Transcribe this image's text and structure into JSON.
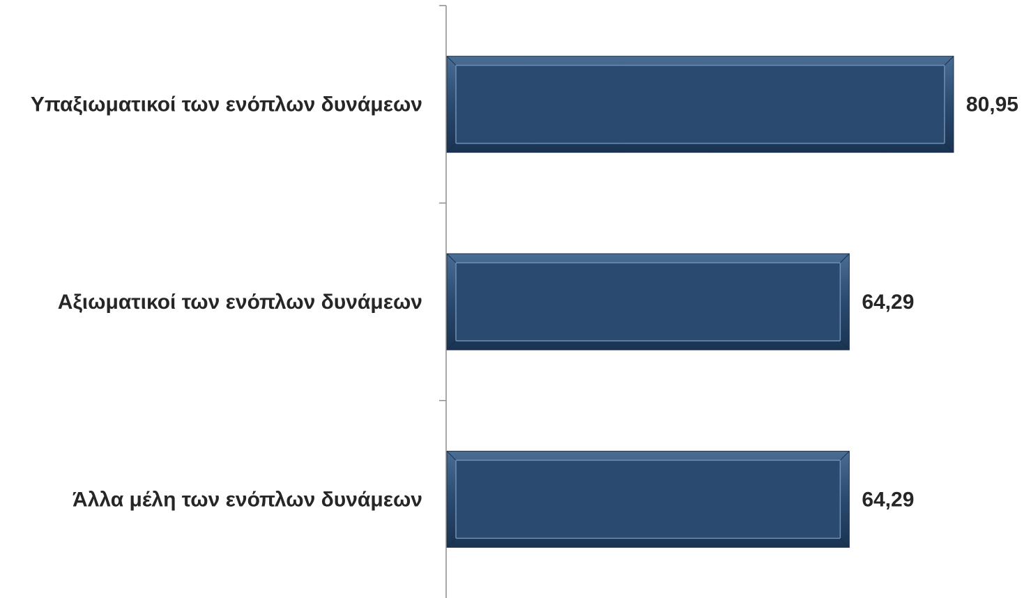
{
  "chart_data": {
    "type": "bar",
    "orientation": "horizontal",
    "categories": [
      "Υπαξιωματικοί των ενόπλων δυνάμεων",
      "Αξιωματικοί των ενόπλων δυνάμεων",
      "Άλλα μέλη των ενόπλων δυνάμεων"
    ],
    "values": [
      80.95,
      64.29,
      64.29
    ],
    "value_labels": [
      "80,95",
      "64,29",
      "64,29"
    ],
    "xlim": [
      0,
      100
    ],
    "grid": false,
    "legend": "none",
    "bar_color": "#2a4a6f",
    "axis_color": "#8c8c8c",
    "title": "",
    "xlabel": "",
    "ylabel": ""
  }
}
